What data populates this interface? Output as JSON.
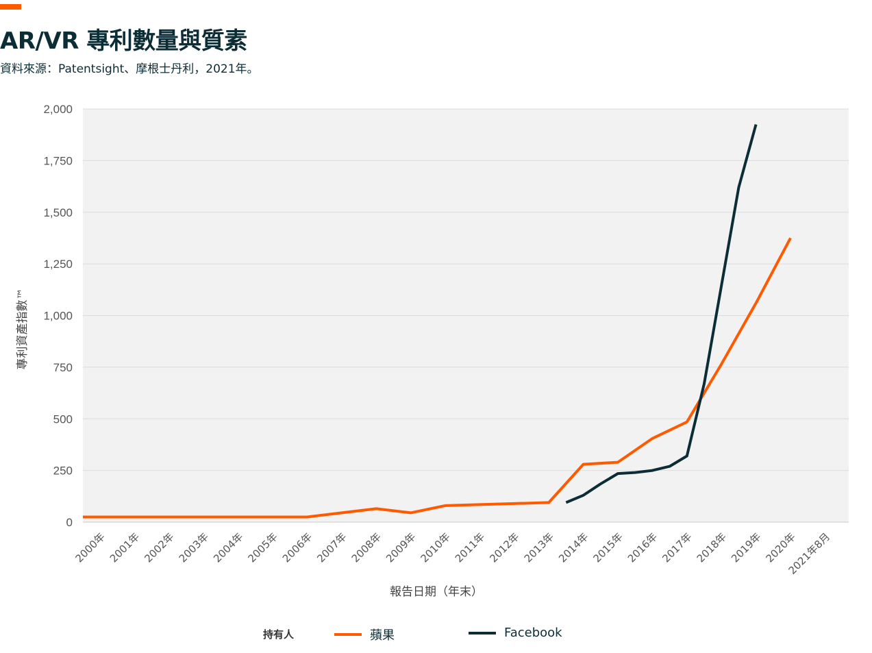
{
  "header": {
    "title": "AR/VR 專利數量與質素",
    "subtitle": "資料來源：Patentsight、摩根士丹利，2021年。"
  },
  "legend": {
    "title": "持有人"
  },
  "colors": {
    "accent": "#ff5a00",
    "apple": "#ff5a00",
    "facebook": "#0d2d36",
    "plot_bg": "#f2f2f2",
    "grid": "#dcdcdc"
  },
  "chart_data": {
    "type": "line",
    "title": "AR/VR 專利數量與質素",
    "xlabel": "報告日期（年末）",
    "ylabel": "專利資產指數™",
    "ylim": [
      0,
      2000
    ],
    "yticks": [
      0,
      250,
      500,
      750,
      1000,
      1250,
      1500,
      1750,
      2000
    ],
    "ytick_labels": [
      "0",
      "250",
      "500",
      "750",
      "1,000",
      "1,250",
      "1,500",
      "1,750",
      "2,000"
    ],
    "categories": [
      "2000年",
      "2001年",
      "2002年",
      "2003年",
      "2004年",
      "2005年",
      "2006年",
      "2007年",
      "2008年",
      "2009年",
      "2010年",
      "2011年",
      "2012年",
      "2013年",
      "2014年",
      "2015年",
      "2016年",
      "2017年",
      "2018年",
      "2019年",
      "2020年",
      "2021年8月"
    ],
    "grid": true,
    "legend_position": "bottom",
    "series": [
      {
        "name": "蘋果",
        "color": "#ff5a00",
        "x": [
          -0.4,
          0,
          1,
          2,
          3,
          4,
          5,
          6,
          7,
          8,
          9,
          10,
          11,
          12,
          13,
          14,
          15,
          16,
          17,
          18,
          19,
          20,
          21
        ],
        "values": [
          25,
          25,
          25,
          25,
          25,
          25,
          25,
          25,
          45,
          65,
          45,
          80,
          85,
          90,
          95,
          280,
          290,
          405,
          485,
          765,
          1060,
          1375,
          null
        ]
      },
      {
        "name": "Facebook",
        "color": "#0d2d36",
        "x": [
          13.5,
          14,
          14.5,
          15,
          15.5,
          16,
          16.5,
          17,
          17.5,
          18,
          18.5,
          19,
          19.5,
          20,
          20.5
        ],
        "values": [
          95,
          130,
          185,
          235,
          240,
          250,
          270,
          320,
          670,
          1145,
          1620,
          1925,
          null,
          null,
          null
        ]
      }
    ]
  }
}
